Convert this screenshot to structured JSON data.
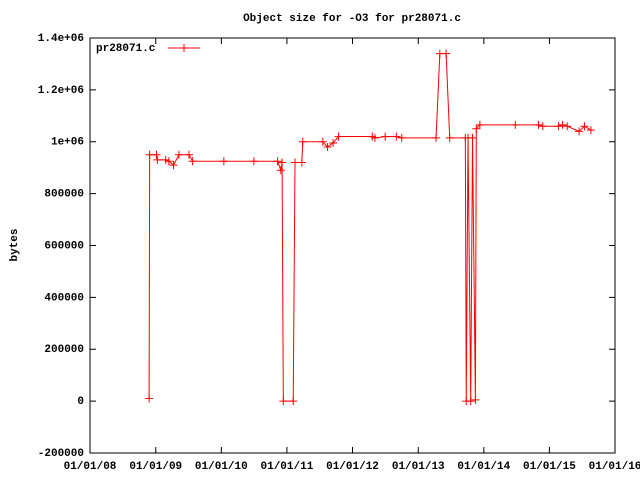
{
  "chart_data": {
    "type": "line",
    "title": "Object size for -O3 for pr28071.c",
    "y_label": "bytes",
    "x": [
      "2008-11-25",
      "2008-11-28",
      "2009-01-05",
      "2009-01-10",
      "2009-02-25",
      "2009-03-15",
      "2009-04-10",
      "2009-05-10",
      "2009-07-05",
      "2009-07-25",
      "2010-01-15",
      "2010-07-01",
      "2010-11-10",
      "2010-11-28",
      "2010-12-05",
      "2010-12-12",
      "2011-02-05",
      "2011-02-15",
      "2011-03-25",
      "2011-03-30",
      "2011-07-20",
      "2011-08-15",
      "2011-09-15",
      "2011-10-15",
      "2012-04-20",
      "2012-05-05",
      "2012-07-01",
      "2012-09-01",
      "2012-10-01",
      "2013-04-10",
      "2013-05-01",
      "2013-06-05",
      "2013-06-25",
      "2013-09-20",
      "2013-09-25",
      "2013-10-05",
      "2013-10-20",
      "2013-10-30",
      "2013-11-15",
      "2013-11-20",
      "2013-12-10",
      "2014-06-25",
      "2014-11-01",
      "2014-11-25",
      "2015-02-20",
      "2015-03-15",
      "2015-04-10",
      "2015-06-15",
      "2015-07-15",
      "2015-08-20"
    ],
    "series": [
      {
        "name": "pr28071.c",
        "color": "#ff0000",
        "values": [
          10000,
          950000,
          950000,
          930000,
          930000,
          925000,
          910000,
          950000,
          950000,
          925000,
          925000,
          925000,
          925000,
          890000,
          920000,
          0,
          0,
          920000,
          920000,
          1000000,
          1000000,
          980000,
          995000,
          1020000,
          1020000,
          1015000,
          1020000,
          1020000,
          1015000,
          1015000,
          1340000,
          1340000,
          1015000,
          1015000,
          0,
          1015000,
          0,
          1015000,
          5000,
          1050000,
          1065000,
          1065000,
          1065000,
          1060000,
          1060000,
          1065000,
          1060000,
          1040000,
          1060000,
          1045000
        ]
      }
    ],
    "xlim": [
      "2008-01-01",
      "2016-01-01"
    ],
    "xticks": [
      {
        "value": "2008-01-01",
        "label": "01/01/08"
      },
      {
        "value": "2009-01-01",
        "label": "01/01/09"
      },
      {
        "value": "2010-01-01",
        "label": "01/01/10"
      },
      {
        "value": "2011-01-01",
        "label": "01/01/11"
      },
      {
        "value": "2012-01-01",
        "label": "01/01/12"
      },
      {
        "value": "2013-01-01",
        "label": "01/01/13"
      },
      {
        "value": "2014-01-01",
        "label": "01/01/14"
      },
      {
        "value": "2015-01-01",
        "label": "01/01/15"
      },
      {
        "value": "2016-01-01",
        "label": "01/01/16"
      }
    ],
    "ylim": [
      -200000,
      1400000
    ],
    "yticks": [
      -200000,
      0,
      200000,
      400000,
      600000,
      800000,
      {
        "value": 1000000,
        "label": "1e+06"
      },
      {
        "value": 1200000,
        "label": "1.2e+06"
      },
      {
        "value": 1400000,
        "label": "1.4e+06"
      }
    ],
    "legend": "top-left"
  }
}
